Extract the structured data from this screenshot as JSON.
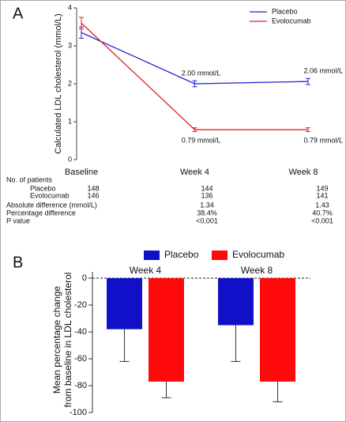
{
  "chart_data": [
    {
      "type": "line",
      "panel": "A",
      "ylabel": "Calculated LDL cholesterol (mmol/L)",
      "categories": [
        "Baseline",
        "Week 4",
        "Week 8"
      ],
      "series": [
        {
          "name": "Placebo",
          "color": "#2020d0",
          "values": [
            3.35,
            2.0,
            2.06
          ],
          "errors": [
            0.15,
            0.08,
            0.08
          ],
          "value_labels": [
            null,
            "2.00 mmol/L",
            "2.06 mmol/L"
          ]
        },
        {
          "name": "Evolocumab",
          "color": "#e02020",
          "values": [
            3.6,
            0.79,
            0.79
          ],
          "errors": [
            0.15,
            0.05,
            0.05
          ],
          "value_labels": [
            null,
            "0.79 mmol/L",
            "0.79 mmol/L"
          ]
        }
      ],
      "ylim": [
        0,
        4
      ],
      "yticks": [
        0,
        1,
        2,
        3,
        4
      ],
      "legend": "top-right",
      "table": {
        "rows": [
          {
            "label": "No. of patients",
            "values": [
              null,
              null,
              null
            ]
          },
          {
            "label": "Placebo",
            "values": [
              "148",
              "144",
              "149"
            ]
          },
          {
            "label": "Evolocumab",
            "values": [
              "146",
              "136",
              "141"
            ]
          },
          {
            "label": "Absolute difference (mmol/L)",
            "values": [
              null,
              "1.34",
              "1.43"
            ]
          },
          {
            "label": "Percentage difference",
            "values": [
              null,
              "38.4%",
              "40.7%"
            ]
          },
          {
            "label": "P value",
            "values": [
              null,
              "<0.001",
              "<0.001"
            ]
          }
        ]
      }
    },
    {
      "type": "bar",
      "panel": "B",
      "ylabel": [
        "Mean percentage change",
        "from baseline in LDL cholesterol"
      ],
      "categories": [
        "Week 4",
        "Week 8"
      ],
      "series": [
        {
          "name": "Placebo",
          "color": "#1010c8",
          "values": [
            -38,
            -35
          ],
          "errors": [
            24,
            27
          ]
        },
        {
          "name": "Evolocumab",
          "color": "#ff0a0a",
          "values": [
            -77,
            -77
          ],
          "errors": [
            12,
            15
          ]
        }
      ],
      "ylim": [
        -100,
        0
      ],
      "yticks": [
        -100,
        -80,
        -60,
        -40,
        -20,
        0
      ],
      "legend": "top"
    }
  ]
}
